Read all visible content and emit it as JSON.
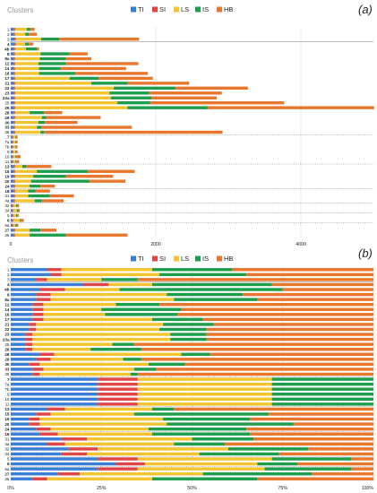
{
  "chart_data": [
    {
      "type": "bar",
      "orientation": "horizontal",
      "stacked": true,
      "panel_label": "(a)",
      "title": "Clusters",
      "legend": {
        "placement": "top-center",
        "entries": [
          "TI",
          "SI",
          "LS",
          "IS",
          "HB"
        ]
      },
      "colors": {
        "TI": "#3a7fd5",
        "SI": "#e04646",
        "LS": "#f4c430",
        "IS": "#1e9e4d",
        "HB": "#e8762c"
      },
      "xlim": [
        0,
        5000
      ],
      "xticks": [
        0,
        2000,
        4000
      ],
      "categories": [
        "1",
        "2",
        "3",
        "4",
        "4b",
        "8",
        "8a",
        "12",
        "14",
        "16",
        "17",
        "21",
        "22",
        "23",
        "23a",
        "25",
        "26",
        "28",
        "29",
        "30",
        "33",
        "35",
        "7",
        "7a",
        "7b",
        "9",
        "10",
        "11",
        "13",
        "15",
        "19",
        "20",
        "24",
        "18",
        "31",
        "4a",
        "32",
        "34",
        "5",
        "6",
        "6a",
        "27",
        "36"
      ],
      "bold_categories": [
        "4",
        "4b",
        "8",
        "8a",
        "12",
        "14",
        "16",
        "17",
        "21",
        "22",
        "23",
        "23a",
        "26",
        "28",
        "29",
        "30",
        "33",
        "7",
        "13",
        "15",
        "19",
        "20",
        "24",
        "18",
        "6",
        "27"
      ],
      "separators_after": [
        {
          "category": "3",
          "style": "solid"
        },
        {
          "category": "35",
          "style": "dotted"
        },
        {
          "category": "11",
          "style": "dotted"
        },
        {
          "category": "24",
          "style": "dotted"
        },
        {
          "category": "4a",
          "style": "dotted"
        },
        {
          "category": "34",
          "style": "dotted"
        },
        {
          "category": "6",
          "style": "dotted"
        }
      ],
      "series": [
        {
          "name": "TI",
          "values": [
            40,
            40,
            50,
            50,
            40,
            40,
            40,
            40,
            40,
            40,
            40,
            40,
            40,
            40,
            40,
            40,
            40,
            40,
            40,
            40,
            40,
            40,
            20,
            20,
            20,
            20,
            20,
            20,
            40,
            40,
            40,
            40,
            40,
            40,
            40,
            40,
            20,
            20,
            20,
            20,
            20,
            40,
            40
          ]
        },
        {
          "name": "SI",
          "values": [
            20,
            20,
            20,
            20,
            20,
            20,
            20,
            20,
            20,
            20,
            20,
            20,
            20,
            20,
            20,
            20,
            20,
            20,
            20,
            20,
            20,
            20,
            15,
            15,
            15,
            15,
            15,
            15,
            20,
            20,
            20,
            20,
            20,
            20,
            20,
            20,
            15,
            15,
            15,
            15,
            15,
            20,
            20
          ]
        },
        {
          "name": "LS",
          "values": [
            160,
            140,
            350,
            130,
            150,
            350,
            340,
            320,
            330,
            330,
            750,
            1050,
            1360,
            1300,
            1320,
            1410,
            1550,
            200,
            370,
            320,
            300,
            350,
            30,
            30,
            30,
            30,
            30,
            30,
            100,
            300,
            250,
            220,
            200,
            180,
            180,
            270,
            40,
            50,
            40,
            90,
            30,
            200,
            200
          ]
        },
        {
          "name": "IS",
          "values": [
            50,
            50,
            250,
            50,
            150,
            400,
            360,
            380,
            300,
            500,
            400,
            500,
            850,
            550,
            560,
            450,
            1100,
            200,
            60,
            90,
            60,
            50,
            10,
            10,
            10,
            10,
            10,
            10,
            50,
            700,
            450,
            800,
            150,
            100,
            300,
            100,
            20,
            20,
            15,
            15,
            20,
            150,
            500
          ]
        },
        {
          "name": "HB",
          "values": [
            60,
            110,
            1100,
            60,
            30,
            250,
            350,
            1000,
            900,
            1000,
            750,
            850,
            1000,
            1000,
            900,
            1850,
            2300,
            250,
            750,
            450,
            1250,
            2460,
            20,
            20,
            20,
            20,
            60,
            40,
            350,
            650,
            650,
            500,
            200,
            200,
            330,
            300,
            20,
            20,
            20,
            40,
            20,
            220,
            850
          ]
        }
      ]
    },
    {
      "type": "bar",
      "orientation": "horizontal",
      "stacked": true,
      "normalized": true,
      "panel_label": "(b)",
      "title": "Clusters",
      "legend": {
        "placement": "top-center",
        "entries": [
          "TI",
          "SI",
          "LS",
          "IS",
          "HB"
        ]
      },
      "xlim": [
        0,
        100
      ],
      "xticks": [
        "0%",
        "25%",
        "50%",
        "75%",
        "100%"
      ],
      "unit": "%",
      "series": [
        {
          "name": "TI",
          "values": [
            10,
            11,
            7,
            20,
            8,
            7,
            7,
            6,
            6,
            6,
            6,
            5,
            5,
            4,
            4,
            4,
            4,
            8,
            7,
            5,
            6,
            6,
            24,
            24,
            24,
            24,
            24,
            24,
            10,
            7,
            5,
            5,
            7,
            8,
            14,
            10,
            16,
            14,
            24,
            29,
            24,
            13,
            6
          ]
        },
        {
          "name": "SI",
          "values": [
            4,
            3,
            3,
            7,
            7,
            4,
            4,
            3,
            3,
            3,
            3,
            2,
            2,
            2,
            2,
            2,
            2,
            4,
            4,
            3,
            3,
            2,
            11,
            11,
            11,
            11,
            11,
            11,
            5,
            4,
            3,
            3,
            4,
            5,
            7,
            5,
            8,
            7,
            11,
            8,
            11,
            6,
            4
          ]
        },
        {
          "name": "LS",
          "values": [
            25,
            27,
            15,
            12,
            15,
            32,
            34,
            20,
            16,
            17,
            30,
            35,
            34,
            38,
            38,
            22,
            16,
            35,
            20,
            30,
            25,
            25,
            37,
            37,
            37,
            37,
            37,
            37,
            24,
            23,
            34,
            35,
            27,
            26,
            29,
            30,
            36,
            31,
            37,
            31,
            35,
            34,
            29
          ]
        },
        {
          "name": "IS",
          "values": [
            22,
            24,
            10,
            33,
            45,
            21,
            23,
            12,
            22,
            20,
            14,
            14,
            13,
            10,
            10,
            6,
            14,
            8,
            5,
            10,
            6,
            2,
            28,
            28,
            28,
            28,
            28,
            28,
            6,
            37,
            24,
            35,
            27,
            27,
            17,
            14,
            22,
            22,
            22,
            11,
            24,
            30,
            29
          ]
        },
        {
          "name": "HB",
          "values": [
            39,
            35,
            65,
            28,
            25,
            36,
            32,
            59,
            53,
            54,
            47,
            44,
            46,
            46,
            46,
            66,
            64,
            45,
            64,
            52,
            60,
            65,
            0,
            0,
            0,
            0,
            0,
            0,
            55,
            29,
            34,
            22,
            35,
            34,
            33,
            41,
            18,
            26,
            6,
            21,
            6,
            17,
            32
          ]
        }
      ]
    }
  ]
}
